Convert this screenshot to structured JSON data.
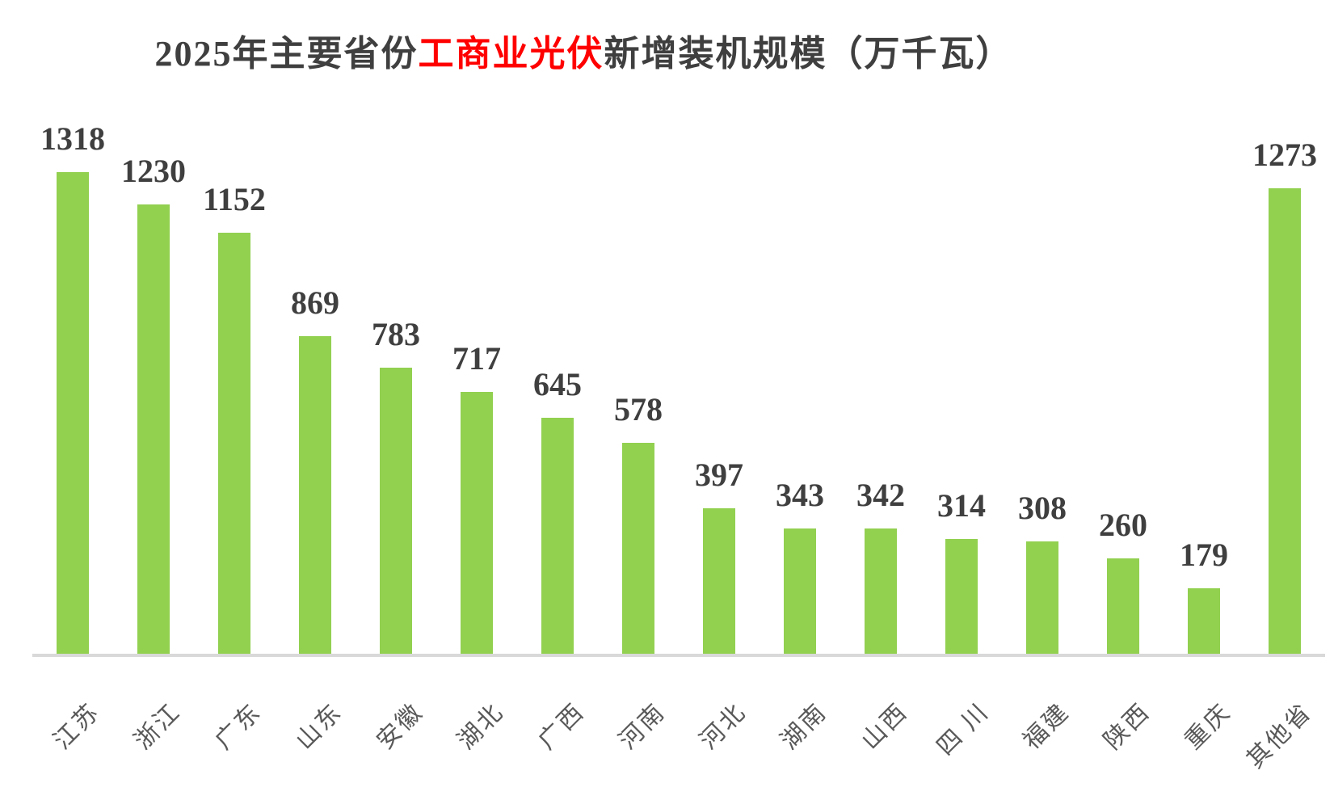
{
  "title": {
    "prefix": "2025年主要省份",
    "highlight": "工商业光伏",
    "suffix": "新增装机规模（万千瓦）",
    "color": "#3f3f3f",
    "highlight_color": "#ff0000"
  },
  "chart_data": {
    "type": "bar",
    "title": "2025年主要省份工商业光伏新增装机规模（万千瓦）",
    "unit": "万千瓦",
    "categories": [
      "江苏",
      "浙江",
      "广东",
      "山东",
      "安徽",
      "湖北",
      "广西",
      "河南",
      "河北",
      "湖南",
      "山西",
      "四 川",
      "福建",
      "陕西",
      "重庆",
      "其他省"
    ],
    "values": [
      1318,
      1230,
      1152,
      869,
      783,
      717,
      645,
      578,
      397,
      343,
      342,
      314,
      308,
      260,
      179,
      1273
    ],
    "ylim": [
      0,
      1400
    ],
    "grid": false,
    "legend": "none",
    "value_labels": true,
    "bar_color": "#92d050",
    "value_label_color": "#3f3f3f",
    "axis_label_color": "#595959",
    "axis_line_color": "#d9d9d9"
  }
}
